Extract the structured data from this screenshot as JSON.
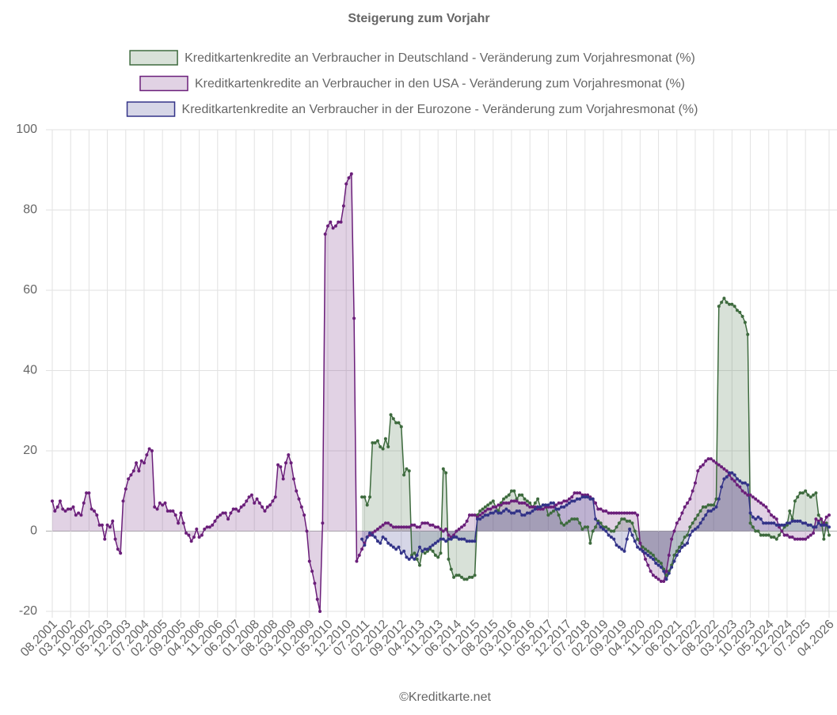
{
  "chart_data": {
    "type": "line",
    "title": "Steigerung zum Vorjahr",
    "source": "©Kreditkarte.net",
    "legend": "top",
    "grid": true,
    "fill": "origin",
    "ylim": [
      -20,
      100
    ],
    "yticks": [
      -20,
      0,
      20,
      40,
      60,
      80,
      100
    ],
    "categories": [
      "08.2001",
      null,
      null,
      null,
      null,
      null,
      null,
      "03.2002",
      null,
      null,
      null,
      null,
      null,
      null,
      "10.2002",
      null,
      null,
      null,
      null,
      null,
      null,
      "05.2003",
      null,
      null,
      null,
      null,
      null,
      null,
      "12.2003",
      null,
      null,
      null,
      null,
      null,
      null,
      "07.2004",
      null,
      null,
      null,
      null,
      null,
      null,
      "02.2005",
      null,
      null,
      null,
      null,
      null,
      null,
      "09.2005",
      null,
      null,
      null,
      null,
      null,
      null,
      "04.2006",
      null,
      null,
      null,
      null,
      null,
      null,
      "11.2006",
      null,
      null,
      null,
      null,
      null,
      null,
      "06.2007",
      null,
      null,
      null,
      null,
      null,
      null,
      "01.2008",
      null,
      null,
      null,
      null,
      null,
      null,
      "08.2008",
      null,
      null,
      null,
      null,
      null,
      null,
      "03.2009",
      null,
      null,
      null,
      null,
      null,
      null,
      "10.2009",
      null,
      null,
      null,
      null,
      null,
      null,
      "05.2010",
      null,
      null,
      null,
      null,
      null,
      null,
      "12.2010",
      null,
      null,
      null,
      null,
      null,
      null,
      "07.2011",
      null,
      null,
      null,
      null,
      null,
      null,
      "02.2012",
      null,
      null,
      null,
      null,
      null,
      null,
      "09.2012",
      null,
      null,
      null,
      null,
      null,
      null,
      "04.2013",
      null,
      null,
      null,
      null,
      null,
      null,
      "11.2013",
      null,
      null,
      null,
      null,
      null,
      null,
      "06.2014",
      null,
      null,
      null,
      null,
      null,
      null,
      "01.2015",
      null,
      null,
      null,
      null,
      null,
      null,
      "08.2015",
      null,
      null,
      null,
      null,
      null,
      null,
      "03.2016",
      null,
      null,
      null,
      null,
      null,
      null,
      "10.2016",
      null,
      null,
      null,
      null,
      null,
      null,
      "05.2017",
      null,
      null,
      null,
      null,
      null,
      null,
      "12.2017",
      null,
      null,
      null,
      null,
      null,
      null,
      "07.2018",
      null,
      null,
      null,
      null,
      null,
      null,
      "02.2019",
      null,
      null,
      null,
      null,
      null,
      null,
      "09.2019",
      null,
      null,
      null,
      null,
      null,
      null,
      "04.2020",
      null,
      null,
      null,
      null,
      null,
      null,
      "11.2020",
      null,
      null,
      null,
      null,
      null,
      null,
      "06.2021",
      null,
      null,
      null,
      null,
      null,
      null,
      "01.2022",
      null,
      null,
      null,
      null,
      null,
      null,
      "08.2022",
      null,
      null,
      null,
      null,
      null,
      null,
      "03.2023",
      null,
      null,
      null,
      null,
      null,
      null,
      "10.2023",
      null,
      null,
      null,
      null,
      null,
      null,
      "05.2024",
      null,
      null,
      null,
      null,
      null,
      null,
      "12.2024",
      null,
      null,
      null,
      null,
      null,
      null,
      "07.2025",
      null,
      null,
      null,
      null,
      null,
      null,
      null,
      null,
      "04.2026"
    ],
    "series": [
      {
        "name": "Kreditkartenkredite an Verbraucher in Deutschland - Veränderung zum Vorjahresmonat (%)",
        "color": "#3e6b3e",
        "values": [
          null,
          null,
          null,
          null,
          null,
          null,
          null,
          null,
          null,
          null,
          null,
          null,
          null,
          null,
          null,
          null,
          null,
          null,
          null,
          null,
          null,
          null,
          null,
          null,
          null,
          null,
          null,
          null,
          null,
          null,
          null,
          null,
          null,
          null,
          null,
          null,
          null,
          null,
          null,
          null,
          null,
          null,
          null,
          null,
          null,
          null,
          null,
          null,
          null,
          null,
          null,
          null,
          null,
          null,
          null,
          null,
          null,
          null,
          null,
          null,
          null,
          null,
          null,
          null,
          null,
          null,
          null,
          null,
          null,
          null,
          null,
          null,
          null,
          null,
          null,
          null,
          null,
          null,
          null,
          null,
          null,
          null,
          null,
          null,
          null,
          null,
          null,
          null,
          null,
          null,
          null,
          null,
          null,
          null,
          null,
          null,
          null,
          null,
          null,
          null,
          null,
          null,
          null,
          null,
          null,
          null,
          null,
          null,
          null,
          null,
          null,
          null,
          null,
          null,
          null,
          null,
          null,
          null,
          8.5,
          8.5,
          6.5,
          8.5,
          22,
          22,
          22.5,
          21,
          20.5,
          23,
          21,
          29,
          28,
          27,
          27,
          26,
          14,
          15.5,
          15,
          -6,
          -5.5,
          -7,
          -8.5,
          -5,
          -5.5,
          -5,
          -4.5,
          -5,
          -6,
          -6.5,
          -5.5,
          15.5,
          14.5,
          -7,
          -9.5,
          -11.5,
          -11,
          -11,
          -11.5,
          -12,
          -12,
          -11.5,
          -11.5,
          -11,
          4,
          5,
          5.5,
          6,
          6.5,
          7,
          7.5,
          6,
          5,
          7,
          8,
          8.5,
          9,
          10,
          10,
          8,
          9,
          9,
          8,
          7.5,
          7,
          6,
          7,
          8,
          6,
          6.5,
          6.5,
          4,
          4.5,
          5,
          5.5,
          4,
          2,
          1.5,
          2,
          2.5,
          3,
          3,
          3,
          2,
          0.5,
          1,
          1,
          -3,
          0,
          1,
          2.5,
          2,
          1,
          1,
          0.5,
          0,
          0,
          1,
          2,
          3,
          3,
          2.5,
          2.5,
          2,
          0,
          -2,
          -3,
          -4,
          -4.5,
          -5,
          -5.5,
          -6,
          -7,
          -7.5,
          -8,
          -9.5,
          -11,
          -10,
          -8.5,
          -6,
          -5,
          -4,
          -3,
          -1.5,
          -1,
          1,
          2,
          3,
          4,
          5,
          6,
          6,
          6.5,
          6.5,
          6.5,
          8,
          56,
          57,
          58,
          57,
          56.5,
          56.5,
          56,
          55,
          54.5,
          53.5,
          52,
          49,
          2,
          1,
          0,
          0,
          -1,
          -1,
          -1,
          -1,
          -1.5,
          -1.5,
          -2,
          -1,
          0,
          1,
          1.5,
          5,
          3,
          7.5,
          8.5,
          9.5,
          9.5,
          10,
          9,
          8.5,
          9,
          9.5,
          4,
          3,
          -2,
          2,
          -1
        ]
      },
      {
        "name": "Kreditkartenkredite an Verbraucher in den USA - Veränderung zum Vorjahresmonat (%)",
        "color": "#6b1f7a",
        "values": [
          7.5,
          5,
          6,
          7.5,
          5.5,
          5,
          5.5,
          5.5,
          6,
          4,
          4.5,
          4,
          7,
          9.5,
          9.5,
          5.5,
          5,
          4,
          1.5,
          1.5,
          -2,
          1.5,
          1,
          2.5,
          -2,
          -4.5,
          -5.5,
          7.5,
          10.5,
          13,
          14,
          15,
          17,
          15,
          17.5,
          17,
          19,
          20.5,
          20,
          6,
          5.5,
          7,
          6.5,
          7,
          5,
          5,
          5,
          4,
          2,
          4.5,
          2,
          -0.5,
          -1,
          -2.5,
          -1.5,
          0.5,
          -1.5,
          -1,
          0.5,
          1,
          1,
          1.5,
          2.5,
          3.5,
          4,
          4.5,
          4.5,
          3,
          4.5,
          5.5,
          5.5,
          5,
          6,
          6.5,
          7.5,
          8.5,
          9,
          7,
          8,
          7,
          6,
          5,
          6,
          6.5,
          7.5,
          8.5,
          16.5,
          16,
          13,
          17,
          19,
          17,
          13,
          10,
          8,
          6,
          4,
          0,
          -7.5,
          -10,
          -13,
          -17,
          -20,
          2,
          74,
          76,
          77,
          75.5,
          76,
          77,
          77,
          81,
          86.5,
          88,
          89,
          53,
          -7.5,
          -6,
          -4.5,
          -3,
          -1.5,
          -1,
          -0.5,
          0,
          0.5,
          1,
          1.5,
          2,
          2,
          1.5,
          1,
          1,
          1,
          1,
          1,
          1,
          1,
          1.5,
          1.5,
          1,
          1,
          2,
          2,
          2,
          1.5,
          1.5,
          1,
          1,
          0.5,
          0,
          0.5,
          -1,
          -1.5,
          -1,
          0,
          0.5,
          1,
          1.5,
          2.5,
          4,
          4,
          4,
          3.5,
          4,
          4.5,
          5,
          5.5,
          5.5,
          6,
          6,
          6.5,
          6.5,
          7,
          7,
          7,
          7.5,
          7.5,
          7.5,
          7,
          7,
          7,
          6.5,
          6,
          6,
          6,
          5.5,
          5.5,
          5.5,
          6,
          6,
          6,
          6,
          6.5,
          7,
          7,
          7.5,
          7.5,
          8,
          8.5,
          9.5,
          9.5,
          9.5,
          9,
          9,
          9,
          8.5,
          8,
          7,
          5.5,
          5.5,
          5,
          5,
          4.5,
          4.5,
          4.5,
          4.5,
          4.5,
          4.5,
          4.5,
          4.5,
          4.5,
          4.5,
          4.5,
          4,
          -3,
          -5,
          -7,
          -8.5,
          -10,
          -11,
          -11.5,
          -12,
          -12.5,
          -12.5,
          -10,
          -6,
          -2,
          0,
          2,
          3,
          4.5,
          6,
          7,
          8,
          10,
          12,
          15,
          16,
          16.5,
          17.5,
          18,
          18,
          17.5,
          17,
          16.5,
          16,
          15.5,
          15,
          14,
          13,
          12.5,
          11.5,
          11,
          10,
          9.5,
          9,
          9,
          8.5,
          8,
          7.5,
          7,
          6.5,
          6,
          5,
          4,
          3.5,
          3,
          1,
          0,
          -1,
          -1,
          -1.5,
          -1.5,
          -2,
          -2,
          -2,
          -2,
          -2,
          -1.5,
          -1,
          -0.5,
          3,
          2.5,
          3,
          2,
          3.5,
          4
        ]
      },
      {
        "name": "Kreditkartenkredite an Verbraucher in der Eurozone - Veränderung zum Vorjahresmonat (%)",
        "color": "#333388",
        "values": [
          null,
          null,
          null,
          null,
          null,
          null,
          null,
          null,
          null,
          null,
          null,
          null,
          null,
          null,
          null,
          null,
          null,
          null,
          null,
          null,
          null,
          null,
          null,
          null,
          null,
          null,
          null,
          null,
          null,
          null,
          null,
          null,
          null,
          null,
          null,
          null,
          null,
          null,
          null,
          null,
          null,
          null,
          null,
          null,
          null,
          null,
          null,
          null,
          null,
          null,
          null,
          null,
          null,
          null,
          null,
          null,
          null,
          null,
          null,
          null,
          null,
          null,
          null,
          null,
          null,
          null,
          null,
          null,
          null,
          null,
          null,
          null,
          null,
          null,
          null,
          null,
          null,
          null,
          null,
          null,
          null,
          null,
          null,
          null,
          null,
          null,
          null,
          null,
          null,
          null,
          null,
          null,
          null,
          null,
          null,
          null,
          null,
          null,
          null,
          null,
          null,
          null,
          null,
          null,
          null,
          null,
          null,
          null,
          null,
          null,
          null,
          null,
          null,
          null,
          null,
          null,
          null,
          null,
          -2,
          -3.5,
          -1.5,
          -0.5,
          -1,
          -1.5,
          -2.5,
          -3,
          -1.5,
          -2,
          -3,
          -3.5,
          -4,
          -4.5,
          -4,
          -5.5,
          -5,
          -6.5,
          -7,
          -6.5,
          -7,
          -6,
          -4,
          -5,
          -4.5,
          -4.5,
          -4,
          -3.5,
          -3,
          -2.5,
          -2,
          -2,
          -2.5,
          -2,
          -2,
          -1.5,
          -1.5,
          -2,
          -2,
          -2,
          -2.5,
          -2.5,
          -2.5,
          -2.5,
          3,
          3,
          3.5,
          4,
          4,
          4.5,
          4.5,
          5,
          4.5,
          4.5,
          5,
          5.5,
          5,
          4.5,
          4.5,
          5,
          5,
          4,
          4,
          4.5,
          4.5,
          5,
          5.5,
          6,
          6,
          6.5,
          6.5,
          6.5,
          7,
          7,
          5.5,
          5.5,
          6,
          6,
          6.5,
          7,
          7.5,
          7.5,
          8,
          8,
          8.5,
          8.5,
          8.5,
          8,
          8,
          3,
          2,
          1,
          0.5,
          0,
          -1,
          -1.5,
          -2,
          -3.5,
          -4,
          -4.5,
          -5,
          -2,
          0.5,
          -1,
          -2.5,
          -4,
          -4.5,
          -5,
          -5.5,
          -6,
          -6.5,
          -7,
          -8,
          -8.5,
          -9,
          -10,
          -12,
          -10.5,
          -9,
          -7.5,
          -6,
          -5,
          -4,
          -3.5,
          -3,
          -1,
          0,
          0.5,
          1,
          2,
          3,
          4,
          5,
          5,
          5.5,
          6,
          8,
          11,
          13,
          13.5,
          14.5,
          14.5,
          14,
          13,
          12.5,
          12,
          12,
          11.5,
          4.5,
          3.5,
          3,
          3.5,
          3,
          2,
          2,
          2,
          2,
          2,
          1.5,
          1.5,
          1.5,
          1.5,
          2,
          2,
          2.5,
          2.5,
          2.5,
          2.5,
          2,
          2,
          1.5,
          1.5,
          1,
          1,
          2,
          1.5,
          1.5,
          1.5,
          1
        ]
      }
    ]
  }
}
